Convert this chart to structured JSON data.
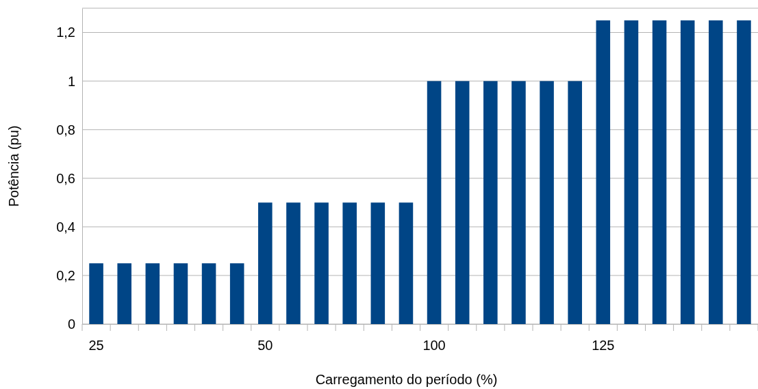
{
  "chart_data": {
    "type": "bar",
    "xlabel": "Carregamento do período (%)",
    "ylabel": "Potência (pu)",
    "categories": [
      "25",
      null,
      null,
      null,
      null,
      null,
      "50",
      null,
      null,
      null,
      null,
      null,
      "100",
      null,
      null,
      null,
      null,
      null,
      "125",
      null,
      null,
      null,
      null,
      null
    ],
    "values": [
      0.25,
      0.25,
      0.25,
      0.25,
      0.25,
      0.25,
      0.5,
      0.5,
      0.5,
      0.5,
      0.5,
      0.5,
      1,
      1,
      1,
      1,
      1,
      1,
      1.25,
      1.25,
      1.25,
      1.25,
      1.25,
      1.25
    ],
    "color": "#004586",
    "ylim": [
      0,
      1.3
    ],
    "yticks": [
      0,
      {
        "value": 0.2,
        "label": "0,2"
      },
      {
        "value": 0.4,
        "label": "0,4"
      },
      {
        "value": 0.6,
        "label": "0,6"
      },
      {
        "value": 0.8,
        "label": "0,8"
      },
      1,
      {
        "value": 1.2,
        "label": "1,2"
      }
    ],
    "grid": "y"
  }
}
